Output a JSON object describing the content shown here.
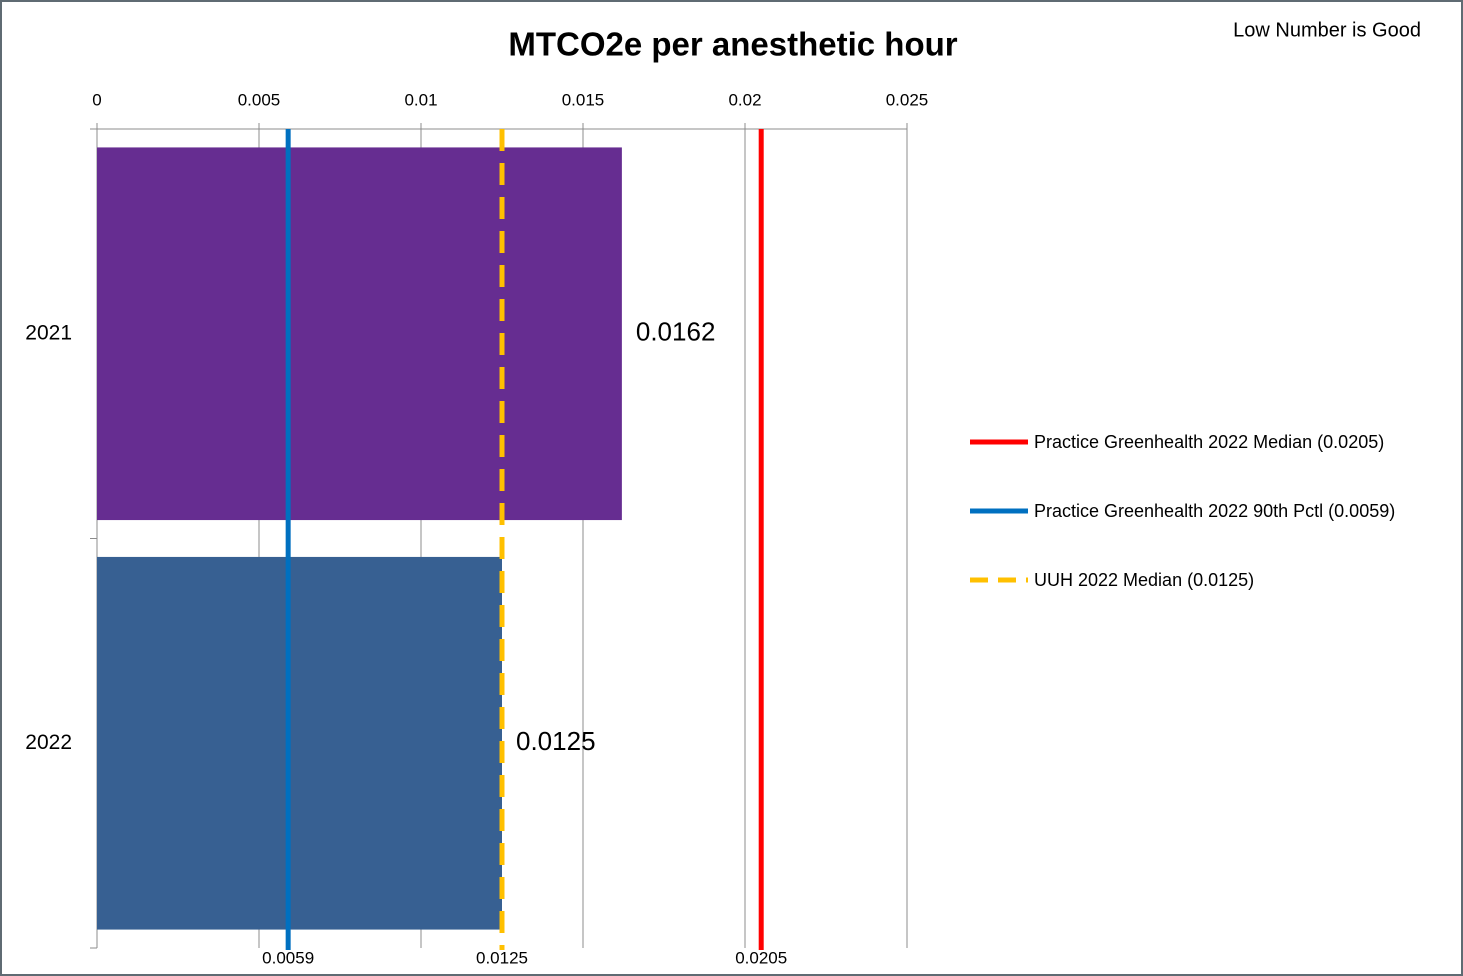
{
  "chart_data": {
    "type": "bar",
    "orientation": "horizontal",
    "title": "MTCO2e per anesthetic hour",
    "annotation": "Low Number is Good",
    "categories": [
      "2021",
      "2022"
    ],
    "values": [
      0.0162,
      0.0125
    ],
    "colors": [
      "#662d91",
      "#376092"
    ],
    "xlim": [
      0,
      0.025
    ],
    "xticks": [
      0,
      0.005,
      0.01,
      0.015,
      0.02,
      0.025
    ],
    "grid": true,
    "legend": "right",
    "reference_lines": [
      {
        "name": "Practice Greenhealth 2022 Median (0.0205)",
        "value": 0.0205,
        "color": "#ff0000",
        "dashed": false
      },
      {
        "name": "Practice Greenhealth 2022 90th Pctl (0.0059)",
        "value": 0.0059,
        "color": "#0070c0",
        "dashed": false
      },
      {
        "name": "UUH 2022 Median (0.0125)",
        "value": 0.0125,
        "color": "#ffc000",
        "dashed": true
      }
    ]
  }
}
